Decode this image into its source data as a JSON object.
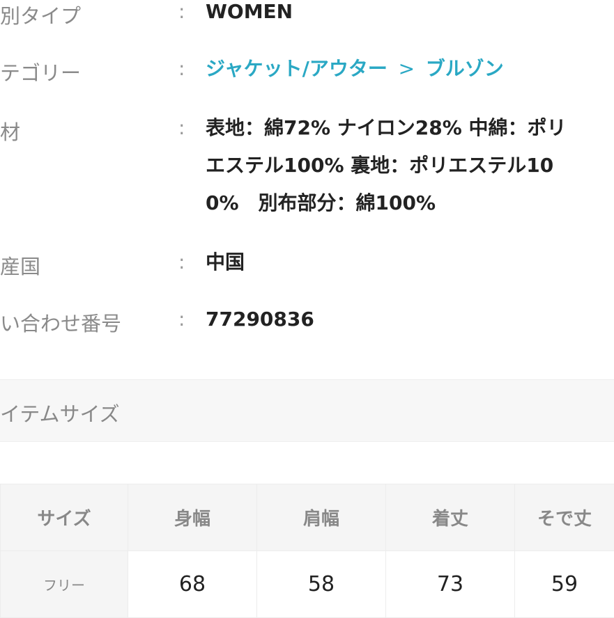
{
  "details": [
    {
      "label": "別タイプ",
      "value": [
        "WOMEN"
      ]
    },
    {
      "label": "テゴリー",
      "category": "ジャケット/アウター",
      "separator": ">",
      "subcategory": "ブルゾン"
    },
    {
      "label": "材",
      "value": [
        "表地：綿72% ナイロン28% 中綿：ポリ",
        "エステル100% 裏地：ポリエステル10",
        "0%　別布部分：綿100%"
      ]
    },
    {
      "label": "産国",
      "value": [
        "中国"
      ]
    },
    {
      "label": "い合わせ番号",
      "value": [
        "77290836"
      ]
    }
  ],
  "colon": ":",
  "section_title": "イテムサイズ",
  "size_table": {
    "headers": [
      "サイズ",
      "身幅",
      "肩幅",
      "着丈",
      "そで丈"
    ],
    "rows": [
      [
        "フリー",
        "68",
        "58",
        "73",
        "59"
      ]
    ]
  },
  "colors": {
    "link": "#2aa8c4",
    "label": "#8a8a8a",
    "value": "#222222"
  }
}
